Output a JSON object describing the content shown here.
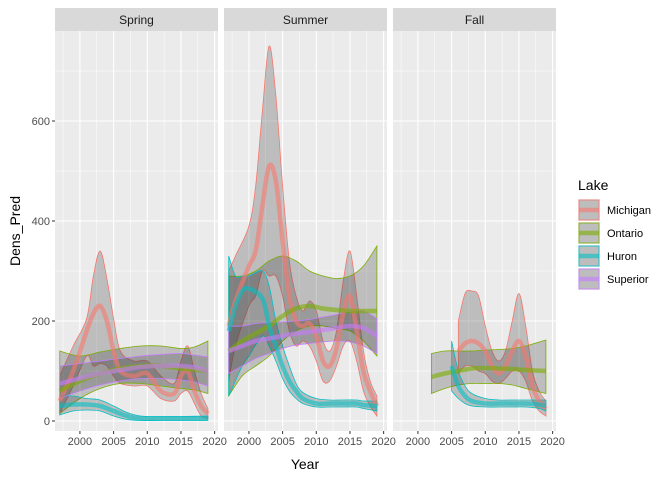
{
  "chart_data": {
    "type": "line",
    "title": "",
    "xlabel": "Year",
    "ylabel": "Dens_Pred",
    "xlim": [
      1996.3,
      2020.5
    ],
    "ylim": [
      -20,
      780
    ],
    "x_ticks": [
      2000,
      2005,
      2010,
      2015,
      2020
    ],
    "y_ticks": [
      0,
      200,
      400,
      600
    ],
    "grid": true,
    "legend": {
      "title": "Lake",
      "position": "right",
      "entries": [
        {
          "name": "Michigan",
          "color": "#F8766D"
        },
        {
          "name": "Ontario",
          "color": "#7CAE00"
        },
        {
          "name": "Huron",
          "color": "#00BFC4"
        },
        {
          "name": "Superior",
          "color": "#C77CFF"
        }
      ]
    },
    "panels": [
      {
        "label": "Spring",
        "series": [
          {
            "name": "Michigan",
            "x": [
              1997,
              1999,
              2001,
              2002,
              2003,
              2004,
              2005,
              2006,
              2008,
              2010,
              2012,
              2014,
              2015,
              2016,
              2017,
              2018,
              2019
            ],
            "y": [
              40,
              100,
              180,
              215,
              230,
              200,
              140,
              100,
              90,
              95,
              60,
              55,
              90,
              100,
              60,
              30,
              15
            ],
            "lower": [
              15,
              70,
              130,
              110,
              115,
              110,
              90,
              75,
              70,
              70,
              45,
              40,
              55,
              60,
              35,
              10,
              5
            ],
            "upper": [
              90,
              150,
              205,
              290,
              340,
              285,
              205,
              140,
              120,
              120,
              90,
              75,
              120,
              150,
              100,
              55,
              25
            ]
          },
          {
            "name": "Ontario",
            "x": [
              1997,
              2000,
              2003,
              2006,
              2009,
              2012,
              2015,
              2017,
              2019
            ],
            "y": [
              60,
              80,
              95,
              105,
              110,
              110,
              105,
              103,
              100
            ],
            "lower": [
              15,
              45,
              65,
              75,
              75,
              70,
              65,
              62,
              55
            ],
            "upper": [
              140,
              130,
              138,
              145,
              150,
              150,
              145,
              148,
              160
            ]
          },
          {
            "name": "Huron",
            "x": [
              1997,
              1999,
              2001,
              2003,
              2005,
              2007,
              2009,
              2012,
              2015,
              2019
            ],
            "y": [
              30,
              33,
              33,
              30,
              20,
              10,
              5,
              5,
              5,
              5
            ],
            "lower": [
              12,
              20,
              22,
              20,
              10,
              3,
              1,
              1,
              1,
              1
            ],
            "upper": [
              50,
              50,
              45,
              42,
              30,
              17,
              10,
              9,
              9,
              10
            ]
          },
          {
            "name": "Superior",
            "x": [
              1997,
              2000,
              2003,
              2006,
              2009,
              2012,
              2015,
              2017,
              2019
            ],
            "y": [
              75,
              85,
              95,
              102,
              108,
              110,
              110,
              107,
              100
            ],
            "lower": [
              45,
              60,
              72,
              80,
              85,
              85,
              82,
              78,
              70
            ],
            "upper": [
              110,
              115,
              120,
              125,
              130,
              133,
              135,
              132,
              128
            ]
          }
        ]
      },
      {
        "label": "Summer",
        "series": [
          {
            "name": "Michigan",
            "x": [
              1997,
              1998,
              2000,
              2001,
              2002,
              2003,
              2004,
              2005,
              2006,
              2007,
              2008,
              2009,
              2010,
              2011,
              2012,
              2013,
              2014,
              2015,
              2016,
              2017,
              2018,
              2019
            ],
            "y": [
              190,
              240,
              310,
              340,
              430,
              510,
              480,
              360,
              250,
              200,
              190,
              195,
              170,
              120,
              110,
              145,
              215,
              250,
              180,
              100,
              60,
              30
            ],
            "lower": [
              80,
              150,
              230,
              250,
              300,
              290,
              290,
              250,
              180,
              150,
              160,
              150,
              120,
              80,
              80,
              110,
              150,
              160,
              120,
              60,
              30,
              10
            ],
            "upper": [
              300,
              330,
              390,
              470,
              620,
              750,
              650,
              470,
              320,
              250,
              220,
              240,
              220,
              160,
              140,
              180,
              280,
              340,
              250,
              140,
              80,
              50
            ]
          },
          {
            "name": "Ontario",
            "x": [
              1997,
              1999,
              2001,
              2003,
              2005,
              2007,
              2009,
              2011,
              2013,
              2015,
              2017,
              2019
            ],
            "y": [
              140,
              160,
              175,
              190,
              210,
              225,
              230,
              225,
              222,
              220,
              220,
              220
            ],
            "lower": [
              50,
              90,
              110,
              130,
              160,
              180,
              190,
              190,
              185,
              180,
              160,
              130
            ],
            "upper": [
              290,
              290,
              300,
              320,
              330,
              320,
              300,
              290,
              285,
              290,
              310,
              350
            ]
          },
          {
            "name": "Huron",
            "x": [
              1997,
              1998,
              1999,
              2000,
              2002,
              2003,
              2004,
              2005,
              2006,
              2007,
              2008,
              2010,
              2012,
              2014,
              2016,
              2017,
              2019
            ],
            "y": [
              180,
              230,
              260,
              265,
              245,
              190,
              150,
              110,
              80,
              60,
              45,
              35,
              35,
              35,
              35,
              32,
              30
            ],
            "lower": [
              50,
              80,
              110,
              130,
              170,
              150,
              120,
              85,
              60,
              45,
              35,
              28,
              28,
              28,
              28,
              25,
              20
            ],
            "upper": [
              330,
              290,
              290,
              290,
              300,
              270,
              200,
              150,
              110,
              75,
              57,
              45,
              42,
              42,
              42,
              40,
              40
            ]
          },
          {
            "name": "Superior",
            "x": [
              1997,
              1999,
              2001,
              2003,
              2005,
              2007,
              2009,
              2011,
              2013,
              2015,
              2017,
              2019
            ],
            "y": [
              140,
              150,
              160,
              165,
              170,
              175,
              178,
              182,
              186,
              190,
              186,
              170
            ],
            "lower": [
              95,
              110,
              125,
              135,
              145,
              152,
              155,
              158,
              160,
              158,
              150,
              135
            ],
            "upper": [
              190,
              190,
              195,
              197,
              198,
              200,
              203,
              208,
              213,
              220,
              220,
              205
            ]
          }
        ]
      },
      {
        "label": "Fall",
        "series": [
          {
            "name": "Michigan",
            "x": [
              2006,
              2007,
              2008,
              2009,
              2010,
              2011,
              2012,
              2013,
              2014,
              2015,
              2016,
              2017,
              2018,
              2019
            ],
            "y": [
              140,
              155,
              160,
              155,
              140,
              110,
              95,
              110,
              140,
              160,
              130,
              70,
              40,
              25
            ],
            "lower": [
              95,
              110,
              110,
              100,
              95,
              80,
              75,
              85,
              100,
              100,
              80,
              40,
              20,
              10
            ],
            "upper": [
              200,
              255,
              260,
              250,
              190,
              140,
              120,
              140,
              200,
              255,
              190,
              100,
              60,
              40
            ]
          },
          {
            "name": "Ontario",
            "x": [
              2002,
              2004,
              2006,
              2008,
              2010,
              2012,
              2014,
              2016,
              2019
            ],
            "y": [
              88,
              95,
              100,
              105,
              106,
              105,
              104,
              102,
              100
            ],
            "lower": [
              55,
              65,
              72,
              75,
              75,
              75,
              72,
              65,
              55
            ],
            "upper": [
              135,
              140,
              140,
              140,
              142,
              143,
              145,
              150,
              162
            ]
          },
          {
            "name": "Huron",
            "x": [
              2005,
              2006,
              2007,
              2008,
              2010,
              2012,
              2014,
              2016,
              2018,
              2019
            ],
            "y": [
              110,
              70,
              50,
              40,
              35,
              35,
              35,
              35,
              33,
              30
            ],
            "lower": [
              60,
              45,
              35,
              30,
              28,
              28,
              28,
              28,
              25,
              20
            ],
            "upper": [
              160,
              100,
              70,
              55,
              45,
              42,
              42,
              42,
              42,
              42
            ]
          }
        ]
      }
    ]
  }
}
